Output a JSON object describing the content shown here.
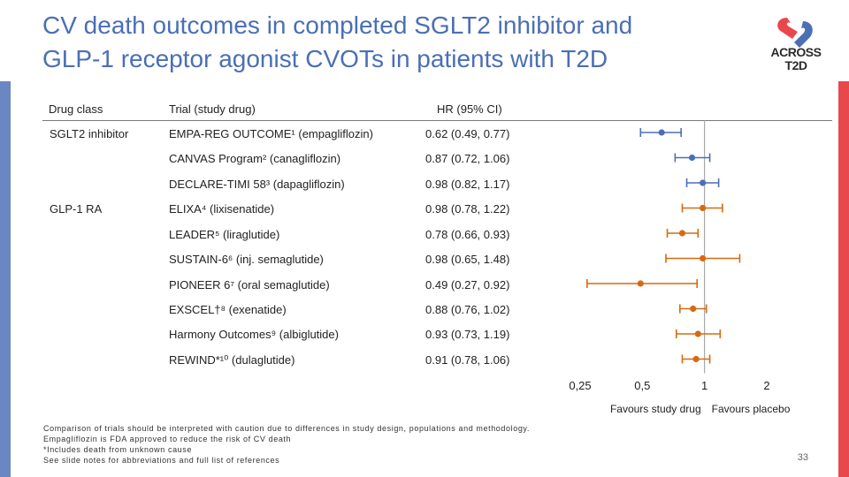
{
  "slide": {
    "title_line1": "CV death outcomes in completed SGLT2 inhibitor and",
    "title_line2": "GLP‑1 receptor agonist CVOTs in patients with T2D",
    "logo_line1": "ACROSS",
    "logo_line2": "T2D",
    "page_number": "33"
  },
  "table": {
    "headers": {
      "drug_class": "Drug class",
      "trial": "Trial (study drug)",
      "hr": "HR (95% CI)"
    },
    "drug_classes": [
      "SGLT2 inhibitor",
      "GLP-1 RA"
    ],
    "rows": [
      {
        "trial": "EMPA-REG OUTCOME¹ (empagliflozin)",
        "hr_text": "0.62 (0.49, 0.77)"
      },
      {
        "trial": "CANVAS Program² (canagliflozin)",
        "hr_text": "0.87 (0.72, 1.06)"
      },
      {
        "trial": "DECLARE-TIMI 58³ (dapagliflozin)",
        "hr_text": "0.98 (0.82, 1.17)"
      },
      {
        "trial": "ELIXA⁴ (lixisenatide)",
        "hr_text": "0.98 (0.78, 1.22)"
      },
      {
        "trial": "LEADER⁵ (liraglutide)",
        "hr_text": "0.78 (0.66, 0.93)"
      },
      {
        "trial": "SUSTAIN-6⁶ (inj. semaglutide)",
        "hr_text": "0.98 (0.65, 1.48)"
      },
      {
        "trial": "PIONEER 6⁷ (oral semaglutide)",
        "hr_text": "0.49 (0.27, 0.92)"
      },
      {
        "trial": "EXSCEL†⁸ (exenatide)",
        "hr_text": "0.88 (0.76, 1.02)"
      },
      {
        "trial": "Harmony Outcomes⁹ (albiglutide)",
        "hr_text": "0.93 (0.73, 1.19)"
      },
      {
        "trial": "REWIND*¹⁰ (dulaglutide)",
        "hr_text": "0.91 (0.78, 1.06)"
      }
    ]
  },
  "chart_data": {
    "type": "scatter",
    "subtype": "forest-plot",
    "xscale": "log",
    "xlim": [
      0.25,
      2
    ],
    "xticks": [
      0.25,
      0.5,
      1,
      2
    ],
    "xtick_labels": [
      "0,25",
      "0,5",
      "1",
      "2"
    ],
    "reference_line": 1,
    "xlabel_left": "Favours study drug",
    "xlabel_right": "Favours placebo",
    "series": [
      {
        "name": "SGLT2 inhibitor",
        "color": "#4a6fb5",
        "points": [
          {
            "hr": 0.62,
            "lo": 0.49,
            "hi": 0.77
          },
          {
            "hr": 0.87,
            "lo": 0.72,
            "hi": 1.06
          },
          {
            "hr": 0.98,
            "lo": 0.82,
            "hi": 1.17
          }
        ]
      },
      {
        "name": "GLP-1 RA",
        "color": "#d66a12",
        "points": [
          {
            "hr": 0.98,
            "lo": 0.78,
            "hi": 1.22
          },
          {
            "hr": 0.78,
            "lo": 0.66,
            "hi": 0.93
          },
          {
            "hr": 0.98,
            "lo": 0.65,
            "hi": 1.48
          },
          {
            "hr": 0.49,
            "lo": 0.27,
            "hi": 0.92
          },
          {
            "hr": 0.88,
            "lo": 0.76,
            "hi": 1.02
          },
          {
            "hr": 0.93,
            "lo": 0.73,
            "hi": 1.19
          },
          {
            "hr": 0.91,
            "lo": 0.78,
            "hi": 1.06
          }
        ]
      }
    ]
  },
  "footnotes": [
    "Comparison of trials should be interpreted with caution due to differences in study design, populations and methodology.",
    "Empagliflozin is FDA approved to reduce the risk of CV death",
    "*Includes death from unknown cause",
    "See slide notes for abbreviations and full list of references"
  ]
}
